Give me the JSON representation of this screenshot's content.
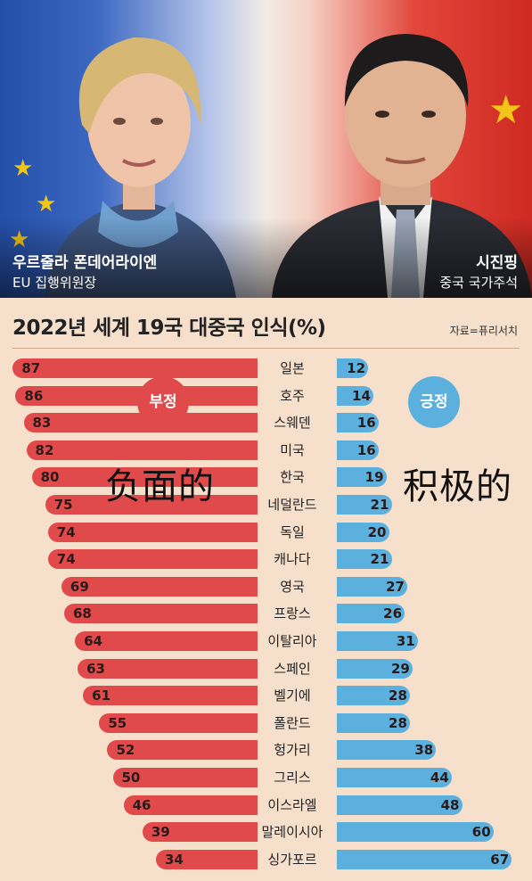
{
  "caption": {
    "left_name": "우르줄라 폰데어라이엔",
    "left_role": "EU 집행위원장",
    "right_name": "시진핑",
    "right_role": "중국 국가주석"
  },
  "chart_data": {
    "type": "bar",
    "title": "2022년 세계 19국 대중국 인식(%)",
    "source": "자료=퓨리서치",
    "legend": {
      "negative": "부정",
      "positive": "긍정"
    },
    "overlay": {
      "negative": "负面的",
      "positive": "积极的"
    },
    "categories": [
      "일본",
      "호주",
      "스웨덴",
      "미국",
      "한국",
      "네덜란드",
      "독일",
      "캐나다",
      "영국",
      "프랑스",
      "이탈리아",
      "스페인",
      "벨기에",
      "폴란드",
      "헝가리",
      "그리스",
      "이스라엘",
      "말레이시아",
      "싱가포르"
    ],
    "series": [
      {
        "name": "부정",
        "color": "#e04a4a",
        "values": [
          87,
          86,
          83,
          82,
          80,
          75,
          74,
          74,
          69,
          68,
          64,
          63,
          61,
          55,
          52,
          50,
          46,
          39,
          34
        ]
      },
      {
        "name": "긍정",
        "color": "#5bb0dd",
        "values": [
          12,
          14,
          16,
          16,
          19,
          21,
          20,
          21,
          27,
          26,
          31,
          29,
          28,
          28,
          38,
          44,
          48,
          60,
          67
        ]
      }
    ]
  }
}
